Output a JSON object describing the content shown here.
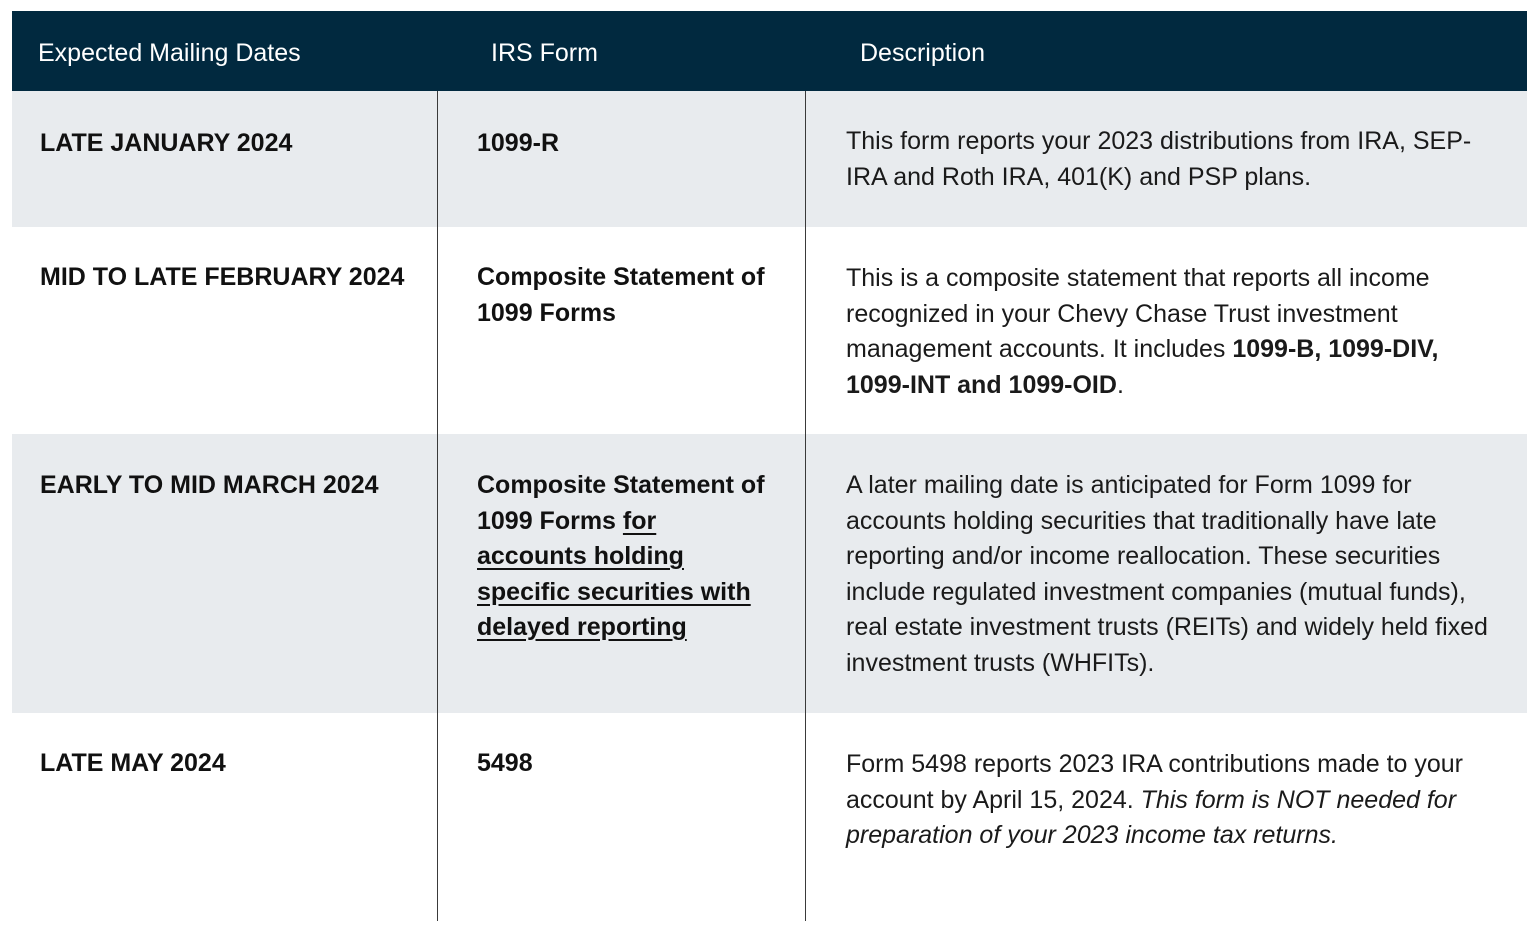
{
  "header": {
    "col_dates": "Expected Mailing Dates",
    "col_form": "IRS Form",
    "col_desc": "Description"
  },
  "rows": [
    {
      "date": "LATE JANUARY 2024",
      "form": "1099-R",
      "desc": "This form reports your 2023 distributions from IRA, SEP-IRA and Roth IRA, 401(K) and PSP plans."
    },
    {
      "date": "MID TO LATE FEBRUARY 2024",
      "form": "Composite Statement of 1099 Forms",
      "desc_part1": "This is a composite statement that reports all income recognized in your Chevy Chase Trust investment management accounts. It includes ",
      "desc_bold": "1099-B, 1099-DIV, 1099-INT and 1099-OID",
      "desc_part2": "."
    },
    {
      "date": "EARLY TO MID MARCH 2024",
      "form_part1": "Composite Statement of 1099 Forms ",
      "form_underlined": "for accounts holding specific securities with delayed reporting",
      "desc": "A later mailing date is anticipated for Form 1099 for accounts holding securities that traditionally have late reporting and/or income reallocation. These securities include regulated investment companies (mutual funds), real estate investment trusts (REITs) and widely held fixed investment trusts (WHFITs)."
    },
    {
      "date": "LATE MAY 2024",
      "form": "5498",
      "desc_part1": "Form 5498 reports 2023 IRA contributions made to your account by April 15, 2024. ",
      "desc_italic": "This form is NOT needed for preparation of your 2023 income tax returns."
    }
  ],
  "colors": {
    "header_bg": "#01293f",
    "header_text": "#ffffff",
    "row_shade": "#e8ebee",
    "divider": "#3a3a3a"
  }
}
